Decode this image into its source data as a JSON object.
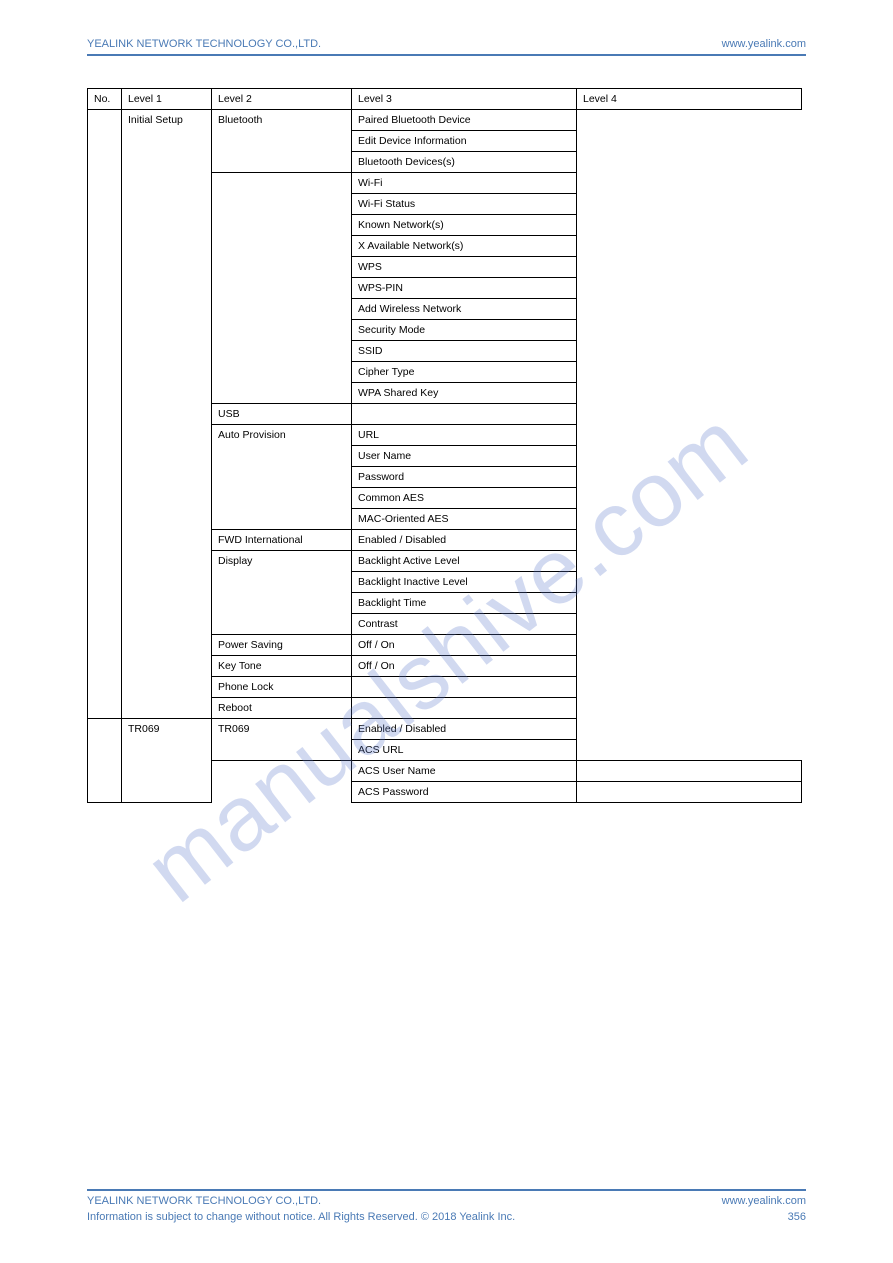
{
  "header": {
    "left": "YEALINK NETWORK TECHNOLOGY CO.,LTD.",
    "right": "www.yealink.com"
  },
  "footer": {
    "line1_left": "YEALINK NETWORK TECHNOLOGY CO.,LTD.",
    "line1_right": "www.yealink.com",
    "line2_left": "Information is subject to change without notice. All Rights Reserved. © 2018 Yealink Inc.",
    "line2_right": "356"
  },
  "watermark": "manualshive.com",
  "table": {
    "colwidths": [
      "34px",
      "90px",
      "140px",
      "225px",
      "225px"
    ],
    "header_row": [
      "No.",
      "Level 1",
      "Level 2",
      "Level 3",
      "Level 4"
    ],
    "groups": [
      {
        "level2": "Initial Setup",
        "level3_blocks": [
          {
            "level3": "Bluetooth",
            "rows": [
              "Paired Bluetooth Device",
              "Edit Device Information",
              "Bluetooth Devices(s)"
            ]
          },
          {
            "level3": "",
            "rows": [
              "Wi-Fi",
              "Wi-Fi Status",
              "Known Network(s)",
              "X Available Network(s)",
              "WPS",
              "WPS-PIN",
              "Add Wireless Network",
              "Security Mode",
              "SSID",
              "Cipher Type",
              "WPA Shared Key"
            ]
          },
          {
            "level3": "USB",
            "rows": []
          },
          {
            "level3": "Auto Provision",
            "rows": [
              "URL",
              "User Name",
              "Password",
              "Common AES",
              "MAC-Oriented AES"
            ]
          },
          {
            "level3": "FWD International",
            "rows": [
              "Enabled / Disabled"
            ]
          },
          {
            "level3": "Display",
            "rows": [
              "Backlight Active Level",
              "Backlight Inactive Level",
              "Backlight Time",
              "Contrast"
            ]
          },
          {
            "level3": "Power Saving",
            "rows": [
              "Off / On"
            ]
          },
          {
            "level3": "Key Tone",
            "rows": [
              "Off / On"
            ]
          },
          {
            "level3": "Phone Lock",
            "rows": []
          },
          {
            "level3": "Reboot",
            "rows": []
          }
        ]
      },
      {
        "level2": "TR069",
        "level3_blocks": [
          {
            "level3": "TR069",
            "rows": [
              "Enabled / Disabled",
              "ACS URL"
            ]
          }
        ],
        "extra_rows": [
          [
            "",
            "",
            "",
            "ACS User Name",
            ""
          ],
          [
            "",
            "",
            "",
            "ACS Password",
            ""
          ]
        ]
      }
    ]
  }
}
